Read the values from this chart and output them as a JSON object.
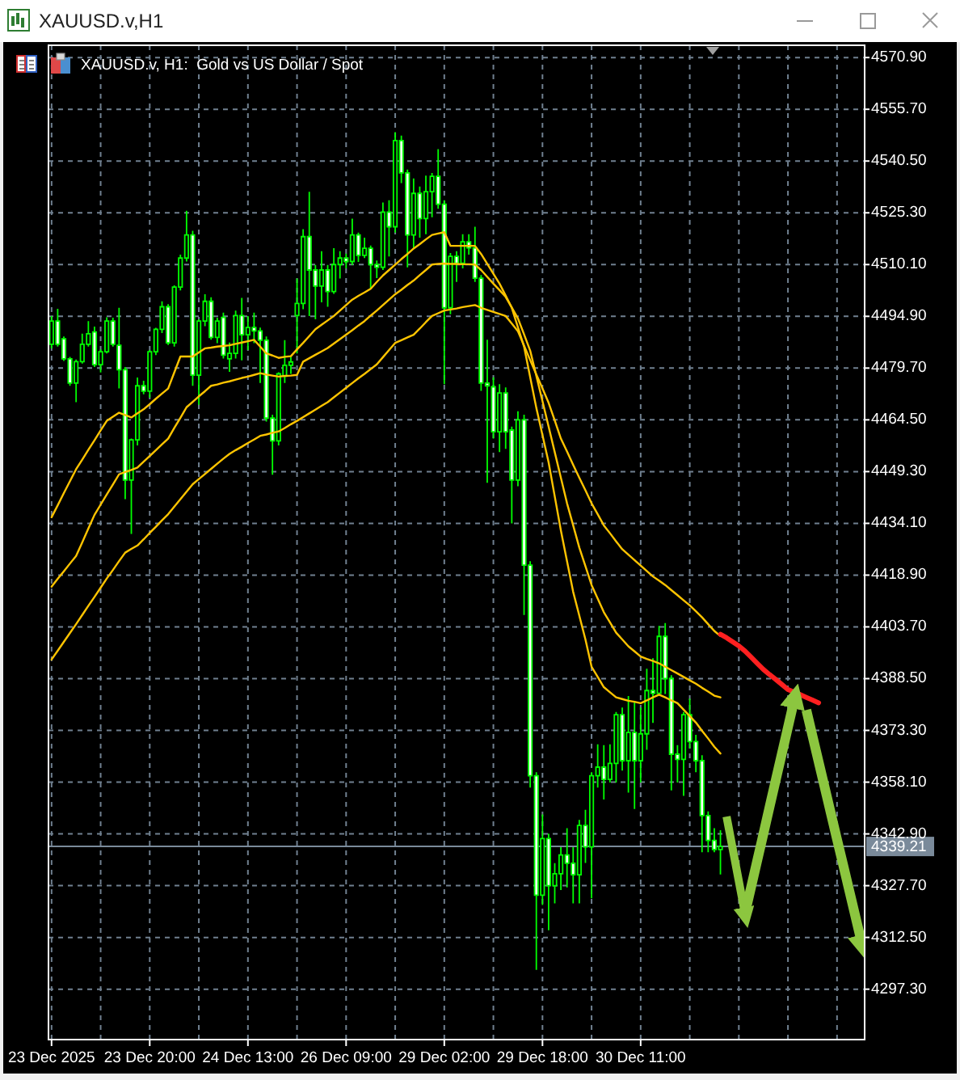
{
  "chart_data": {
    "type": "candlestick",
    "title": "XAUUSD.v,H1",
    "subtitle": "XAUUSD.v, H1:  Gold vs US Dollar / Spot",
    "color": "#00ff00",
    "categories": [
      "23 Dec 2025",
      null,
      null,
      null,
      null,
      null,
      null,
      null,
      null,
      null,
      null,
      null,
      null,
      null,
      null,
      null,
      "23 Dec 20:00",
      null,
      null,
      null,
      null,
      null,
      null,
      null,
      null,
      null,
      null,
      null,
      null,
      null,
      null,
      null,
      "24 Dec 13:00",
      null,
      null,
      null,
      null,
      null,
      null,
      null,
      null,
      null,
      null,
      null,
      null,
      null,
      null,
      null,
      "26 Dec 09:00",
      null,
      null,
      null,
      null,
      null,
      null,
      null,
      null,
      null,
      null,
      null,
      null,
      null,
      null,
      null,
      "29 Dec 02:00",
      null,
      null,
      null,
      null,
      null,
      null,
      null,
      null,
      null,
      null,
      null,
      null,
      null,
      null,
      null,
      "29 Dec 18:00",
      null,
      null,
      null,
      null,
      null,
      null,
      null,
      null,
      null,
      null,
      null,
      null,
      null,
      null,
      null,
      "30 Dec 11:00",
      null,
      null,
      null,
      null,
      null,
      null,
      null,
      null,
      null,
      null,
      null,
      null,
      null,
      null,
      null,
      null,
      null,
      null,
      null,
      null,
      null,
      null,
      null,
      null,
      null,
      null,
      null,
      null,
      null,
      null,
      null,
      null,
      null,
      null,
      null,
      null
    ],
    "ohlc": [
      [
        4486.7,
        4495.0,
        4485.5,
        4493.5
      ],
      [
        4493.5,
        4497.1,
        4486.0,
        4486.7
      ],
      [
        4488.3,
        4489.0,
        4481.8,
        4482.4
      ],
      [
        4482.4,
        4483.0,
        4474.5,
        4475.3
      ],
      [
        4475.3,
        4482.2,
        4469.7,
        4481.6
      ],
      [
        4481.6,
        4489.8,
        4481.0,
        4486.7
      ],
      [
        4486.7,
        4493.5,
        4486.0,
        4489.8
      ],
      [
        4490.3,
        4491.9,
        4480.0,
        4480.7
      ],
      [
        4480.7,
        4485.2,
        4478.4,
        4484.5
      ],
      [
        4484.5,
        4494.6,
        4484.0,
        4493.5
      ],
      [
        4493.5,
        4494.5,
        4486.0,
        4486.7
      ],
      [
        4486.4,
        4497.4,
        4473.7,
        4479.2
      ],
      [
        4479.2,
        4480.0,
        4441.2,
        4446.8
      ],
      [
        4446.8,
        4459.0,
        4431.0,
        4458.6
      ],
      [
        4458.6,
        4476.9,
        4457.0,
        4474.5
      ],
      [
        4474.5,
        4476.0,
        4472.0,
        4472.9
      ],
      [
        4472.9,
        4485.0,
        4471.0,
        4484.5
      ],
      [
        4484.5,
        4491.5,
        4483.5,
        4491.1
      ],
      [
        4491.1,
        4499.3,
        4490.0,
        4497.7
      ],
      [
        4497.7,
        4498.5,
        4486.5,
        4487.1
      ],
      [
        4487.1,
        4504.0,
        4486.0,
        4503.5
      ],
      [
        4503.5,
        4513.0,
        4502.5,
        4512.0
      ],
      [
        4512.0,
        4525.9,
        4511.0,
        4518.8
      ],
      [
        4518.8,
        4520.0,
        4474.5,
        4477.6
      ],
      [
        4477.6,
        4494.0,
        4468.9,
        4493.5
      ],
      [
        4493.5,
        4501.4,
        4492.0,
        4499.3
      ],
      [
        4499.3,
        4500.5,
        4488.0,
        4488.7
      ],
      [
        4488.7,
        4494.5,
        4487.0,
        4493.5
      ],
      [
        4494.6,
        4496.0,
        4482.5,
        4483.5
      ],
      [
        4482.4,
        4487.2,
        4478.6,
        4484.0
      ],
      [
        4484.0,
        4496.6,
        4482.5,
        4495.1
      ],
      [
        4495.1,
        4500.3,
        4482.0,
        4489.5
      ],
      [
        4489.5,
        4495.0,
        4485.0,
        4491.6
      ],
      [
        4491.6,
        4496.0,
        4487.0,
        4490.6
      ],
      [
        4490.6,
        4491.6,
        4475.3,
        4487.9
      ],
      [
        4487.9,
        4489.0,
        4464.0,
        4465.0
      ],
      [
        4465.0,
        4466.0,
        4448.4,
        4458.3
      ],
      [
        4458.3,
        4478.5,
        4457.0,
        4478.0
      ],
      [
        4477.3,
        4487.9,
        4475.3,
        4480.5
      ],
      [
        4480.5,
        4483.0,
        4478.0,
        4481.5
      ],
      [
        4495.1,
        4506.0,
        4484.0,
        4498.7
      ],
      [
        4498.7,
        4520.5,
        4497.0,
        4518.3
      ],
      [
        4518.3,
        4531.5,
        4495.0,
        4508.5
      ],
      [
        4508.5,
        4510.0,
        4494.0,
        4503.8
      ],
      [
        4503.8,
        4514.0,
        4499.0,
        4508.5
      ],
      [
        4508.5,
        4510.0,
        4497.7,
        4502.2
      ],
      [
        4502.2,
        4514.9,
        4501.5,
        4510.1
      ],
      [
        4510.1,
        4514.0,
        4506.0,
        4512.0
      ],
      [
        4512.0,
        4513.3,
        4509.0,
        4511.0
      ],
      [
        4511.0,
        4523.6,
        4510.0,
        4518.8
      ],
      [
        4518.8,
        4519.5,
        4510.9,
        4512.8
      ],
      [
        4512.8,
        4518.0,
        4512.0,
        4514.9
      ],
      [
        4514.9,
        4515.7,
        4503.0,
        4510.1
      ],
      [
        4510.1,
        4511.3,
        4506.1,
        4509.3
      ],
      [
        4509.3,
        4528.3,
        4508.5,
        4525.5
      ],
      [
        4525.5,
        4529.0,
        4512.5,
        4521.2
      ],
      [
        4521.2,
        4549.0,
        4519.5,
        4546.5
      ],
      [
        4546.5,
        4548.0,
        4534.0,
        4537.0
      ],
      [
        4537.0,
        4538.0,
        4509.3,
        4518.8
      ],
      [
        4518.8,
        4535.4,
        4515.0,
        4531.0
      ],
      [
        4531.0,
        4533.0,
        4518.0,
        4523.6
      ],
      [
        4523.6,
        4536.2,
        4519.0,
        4531.5
      ],
      [
        4531.5,
        4537.0,
        4524.0,
        4536.0
      ],
      [
        4536.0,
        4544.0,
        4526.5,
        4527.8
      ],
      [
        4527.8,
        4529.0,
        4475.0,
        4497.4
      ],
      [
        4497.4,
        4513.5,
        4495.5,
        4512.5
      ],
      [
        4512.5,
        4514.0,
        4505.0,
        4510.5
      ],
      [
        4510.5,
        4519.0,
        4509.0,
        4516.8
      ],
      [
        4516.8,
        4519.0,
        4513.0,
        4515.0
      ],
      [
        4515.0,
        4521.2,
        4505.0,
        4506.1
      ],
      [
        4506.1,
        4507.0,
        4473.0,
        4475.3
      ],
      [
        4475.3,
        4488.0,
        4446.0,
        4474.5
      ],
      [
        4474.2,
        4477.0,
        4459.0,
        4461.0
      ],
      [
        4461.0,
        4475.0,
        4455.0,
        4472.4
      ],
      [
        4472.4,
        4474.0,
        4456.0,
        4461.0
      ],
      [
        4461.5,
        4462.5,
        4434.1,
        4446.8
      ],
      [
        4446.8,
        4467.0,
        4445.0,
        4464.5
      ],
      [
        4464.5,
        4466.0,
        4407.2,
        4421.8
      ],
      [
        4421.8,
        4423.0,
        4356.5,
        4360.0
      ],
      [
        4360.0,
        4361.0,
        4303.0,
        4324.9
      ],
      [
        4324.9,
        4348.6,
        4322.0,
        4341.5
      ],
      [
        4341.5,
        4343.0,
        4314.6,
        4327.7
      ],
      [
        4327.7,
        4334.3,
        4322.5,
        4331.2
      ],
      [
        4331.2,
        4339.0,
        4326.4,
        4336.7
      ],
      [
        4336.7,
        4344.6,
        4327.2,
        4334.3
      ],
      [
        4334.3,
        4339.0,
        4322.5,
        4330.9
      ],
      [
        4330.9,
        4347.0,
        4322.5,
        4345.4
      ],
      [
        4345.4,
        4350.0,
        4334.4,
        4339.1
      ],
      [
        4339.1,
        4361.0,
        4324.0,
        4360.0
      ],
      [
        4360.0,
        4369.2,
        4356.5,
        4362.5
      ],
      [
        4362.5,
        4369.0,
        4353.0,
        4358.9
      ],
      [
        4358.9,
        4369.2,
        4358.0,
        4363.6
      ],
      [
        4363.6,
        4378.7,
        4358.0,
        4377.9
      ],
      [
        4377.9,
        4380.0,
        4361.5,
        4364.4
      ],
      [
        4364.4,
        4383.4,
        4355.0,
        4372.7
      ],
      [
        4372.7,
        4381.9,
        4350.2,
        4364.4
      ],
      [
        4364.4,
        4380.0,
        4358.0,
        4372.3
      ],
      [
        4372.3,
        4391.4,
        4367.6,
        4385.0
      ],
      [
        4385.0,
        4394.5,
        4375.5,
        4384.2
      ],
      [
        4384.2,
        4404.0,
        4383.5,
        4400.9
      ],
      [
        4400.9,
        4404.8,
        4384.0,
        4388.5
      ],
      [
        4388.5,
        4389.5,
        4355.7,
        4366.3
      ],
      [
        4366.3,
        4369.0,
        4358.0,
        4364.8
      ],
      [
        4364.8,
        4378.7,
        4354.1,
        4377.9
      ],
      [
        4377.9,
        4382.6,
        4368.0,
        4370.0
      ],
      [
        4370.0,
        4372.0,
        4361.0,
        4364.4
      ],
      [
        4364.4,
        4366.0,
        4337.5,
        4348.3
      ],
      [
        4348.3,
        4349.5,
        4337.5,
        4341.0
      ],
      [
        4341.0,
        4344.6,
        4337.5,
        4338.3
      ],
      [
        4338.3,
        4344.0,
        4331.0,
        4339.21
      ],
      null,
      null,
      null,
      null,
      null,
      null,
      null,
      null,
      null,
      null,
      null,
      null,
      null,
      null,
      null,
      null,
      null,
      null,
      null,
      null,
      null,
      null,
      null
    ],
    "series": [
      {
        "type": "line",
        "color": "#ffc400",
        "values": [
          4435.9,
          4439.4,
          4443.0,
          4446.5,
          4450.0,
          4452.8,
          4455.7,
          4458.5,
          4461.4,
          4464.2,
          4465.4,
          4466.6,
          4465.9,
          4465.2,
          4466.4,
          4467.6,
          4469.1,
          4470.7,
          4472.2,
          4473.7,
          4478.4,
          4483.1,
          4483.1,
          4483.1,
          4484.3,
          4485.5,
          4485.7,
          4486.0,
          4486.2,
          4486.4,
          4486.8,
          4487.2,
          4487.6,
          4488.0,
          4486.0,
          4484.0,
          4483.4,
          4482.7,
          4483.0,
          4483.2,
          4485.2,
          4487.1,
          4489.1,
          4491.1,
          4492.4,
          4493.7,
          4495.0,
          4496.6,
          4498.2,
          4499.8,
          4500.9,
          4501.9,
          4503.0,
          4505.0,
          4506.9,
          4508.5,
          4510.1,
          4511.7,
          4513.2,
          4514.8,
          4516.1,
          4517.5,
          4518.8,
          4519.2,
          4519.6,
          4515.6,
          4515.6,
          4515.6,
          4515.6,
          4515.6,
          4513.2,
          4510.3,
          4507.4,
          4504.5,
          4501.0,
          4497.4,
          4491.7,
          4486.0,
          4477.0,
          4468.0,
          4460.0,
          4452.0,
          4442.0,
          4432.0,
          4423.0,
          4414.0,
          4407.0,
          4400.0,
          4392.0,
          4389.0,
          4386.0,
          4384.5,
          4383.0,
          4382.5,
          4382.0,
          4381.7,
          4381.3,
          4382.1,
          4383.0,
          4383.8,
          4383.0,
          4382.1,
          4381.3,
          4379.4,
          4377.5,
          4375.6,
          4373.2,
          4370.9,
          4368.5,
          4366.5,
          null,
          null,
          null,
          null,
          null,
          null,
          null,
          null,
          null,
          null,
          null,
          null,
          null,
          null,
          null,
          null,
          null,
          null,
          null,
          null,
          null,
          null,
          null
        ]
      },
      {
        "type": "line",
        "color": "#ffc400",
        "values": [
          4415.5,
          4417.8,
          4420.0,
          4422.3,
          4424.5,
          4428.5,
          4432.6,
          4436.6,
          4439.6,
          4442.6,
          4445.5,
          4448.5,
          4449.2,
          4449.8,
          4450.5,
          4452.2,
          4453.9,
          4455.6,
          4457.3,
          4459.0,
          4462.1,
          4465.1,
          4468.2,
          4469.8,
          4471.4,
          4472.9,
          4474.5,
          4474.9,
          4475.4,
          4475.8,
          4476.3,
          4476.8,
          4477.2,
          4477.7,
          4478.2,
          4477.8,
          4477.5,
          4477.2,
          4477.4,
          4477.5,
          4477.7,
          4481.6,
          4482.6,
          4483.6,
          4484.6,
          4485.6,
          4486.9,
          4488.2,
          4489.5,
          4490.8,
          4492.2,
          4493.5,
          4495.1,
          4496.6,
          4498.2,
          4499.8,
          4501.4,
          4502.7,
          4504.1,
          4505.4,
          4507.0,
          4508.5,
          4510.1,
          4510.3,
          4510.4,
          4510.3,
          4510.3,
          4510.2,
          4510.2,
          4510.1,
          4508.5,
          4506.5,
          4504.5,
          4502.6,
          4500.6,
          4497.5,
          4494.3,
          4489.6,
          4484.8,
          4477.4,
          4470.0,
          4462.5,
          4455.0,
          4447.5,
          4440.0,
          4433.5,
          4427.0,
          4421.5,
          4416.0,
          4412.0,
          4408.0,
          4405.0,
          4402.0,
          4400.0,
          4398.0,
          4396.5,
          4395.0,
          4394.3,
          4393.7,
          4393.0,
          4392.0,
          4391.0,
          4390.0,
          4389.0,
          4388.0,
          4387.0,
          4385.8,
          4384.7,
          4383.5,
          4383.0,
          null,
          null,
          null,
          null,
          null,
          null,
          null,
          null,
          null,
          null,
          null,
          null,
          null,
          null,
          null,
          null,
          null,
          null,
          null,
          null,
          null,
          null,
          null
        ]
      },
      {
        "type": "line",
        "color": "#ffc400",
        "values": [
          4394.1,
          4396.7,
          4399.3,
          4401.9,
          4404.5,
          4407.2,
          4409.9,
          4412.5,
          4415.2,
          4417.9,
          4420.4,
          4423.0,
          4425.5,
          4426.6,
          4427.6,
          4429.4,
          4431.3,
          4433.1,
          4435.0,
          4436.8,
          4439.0,
          4441.2,
          4443.4,
          4445.6,
          4447.1,
          4448.6,
          4450.1,
          4451.6,
          4453.1,
          4454.5,
          4455.6,
          4456.6,
          4457.7,
          4458.7,
          4459.8,
          4460.2,
          4460.7,
          4461.1,
          4462.1,
          4463.2,
          4464.2,
          4465.3,
          4466.4,
          4467.5,
          4468.6,
          4469.7,
          4471.1,
          4472.5,
          4473.9,
          4475.3,
          4476.7,
          4478.0,
          4479.4,
          4480.8,
          4482.9,
          4485.0,
          4487.1,
          4487.9,
          4488.7,
          4489.5,
          4491.3,
          4493.2,
          4495.0,
          4495.8,
          4496.6,
          4496.9,
          4497.2,
          4497.6,
          4497.9,
          4498.2,
          4497.4,
          4496.8,
          4496.2,
          4495.6,
          4495.0,
          4492.8,
          4490.5,
          4486.3,
          4482.0,
          4477.8,
          4473.7,
          4469.5,
          4464.3,
          4459.0,
          4455.2,
          4451.3,
          4447.5,
          4443.8,
          4440.0,
          4436.8,
          4433.5,
          4431.2,
          4428.8,
          4426.5,
          4424.9,
          4423.3,
          4421.7,
          4420.1,
          4418.5,
          4417.3,
          4416.0,
          4414.5,
          4413.0,
          4411.5,
          4410.0,
          4408.3,
          4406.5,
          4404.5,
          4402.5,
          4401.0,
          null,
          null,
          null,
          null,
          null,
          null,
          null,
          null,
          null,
          null,
          null,
          null,
          null,
          null,
          null,
          null,
          null,
          null,
          null,
          null,
          null,
          null,
          null
        ]
      },
      {
        "type": "line",
        "color": "#ff2020",
        "values": [
          null,
          null,
          null,
          null,
          null,
          null,
          null,
          null,
          null,
          null,
          null,
          null,
          null,
          null,
          null,
          null,
          null,
          null,
          null,
          null,
          null,
          null,
          null,
          null,
          null,
          null,
          null,
          null,
          null,
          null,
          null,
          null,
          null,
          null,
          null,
          null,
          null,
          null,
          null,
          null,
          null,
          null,
          null,
          null,
          null,
          null,
          null,
          null,
          null,
          null,
          null,
          null,
          null,
          null,
          null,
          null,
          null,
          null,
          null,
          null,
          null,
          null,
          null,
          null,
          null,
          null,
          null,
          null,
          null,
          null,
          null,
          null,
          null,
          null,
          null,
          null,
          null,
          null,
          null,
          null,
          null,
          null,
          null,
          null,
          null,
          null,
          null,
          null,
          null,
          null,
          null,
          null,
          null,
          null,
          null,
          null,
          null,
          null,
          null,
          null,
          null,
          null,
          null,
          null,
          null,
          null,
          null,
          null,
          null,
          4401.5,
          4400.5,
          4399.3,
          4398.1,
          4396.6,
          4394.8,
          4393.0,
          4391.2,
          4389.7,
          4388.3,
          4386.8,
          4385.3,
          4384.6,
          4383.8,
          4383.0,
          4382.2,
          4381.4,
          null,
          null,
          null,
          null,
          null,
          null,
          null
        ]
      },
      {
        "type": "line",
        "color": "#8cc63f",
        "values": [
          null,
          null,
          null,
          null,
          null,
          null,
          null,
          null,
          null,
          null,
          null,
          null,
          null,
          null,
          null,
          null,
          null,
          null,
          null,
          null,
          null,
          null,
          null,
          null,
          null,
          null,
          null,
          null,
          null,
          null,
          null,
          null,
          null,
          null,
          null,
          null,
          null,
          null,
          null,
          null,
          null,
          null,
          null,
          null,
          null,
          null,
          null,
          null,
          null,
          null,
          null,
          null,
          null,
          null,
          null,
          null,
          null,
          null,
          null,
          null,
          null,
          null,
          null,
          null,
          null,
          null,
          null,
          null,
          null,
          null,
          null,
          null,
          null,
          null,
          null,
          null,
          null,
          null,
          null,
          null,
          null,
          null,
          null,
          null,
          null,
          null,
          null,
          null,
          null,
          null,
          null,
          null,
          null,
          null,
          null,
          null,
          null,
          null,
          null,
          null,
          null,
          null,
          null,
          null,
          null,
          null,
          null,
          null,
          null,
          null,
          4348.0,
          4338.5,
          4329.0,
          4319.5,
          null,
          null,
          null,
          null,
          null,
          null,
          null,
          null,
          null,
          null,
          null,
          null,
          null,
          null,
          null,
          null,
          null,
          null,
          null
        ]
      },
      {
        "type": "line",
        "color": "#8cc63f",
        "values": [
          null,
          null,
          null,
          null,
          null,
          null,
          null,
          null,
          null,
          null,
          null,
          null,
          null,
          null,
          null,
          null,
          null,
          null,
          null,
          null,
          null,
          null,
          null,
          null,
          null,
          null,
          null,
          null,
          null,
          null,
          null,
          null,
          null,
          null,
          null,
          null,
          null,
          null,
          null,
          null,
          null,
          null,
          null,
          null,
          null,
          null,
          null,
          null,
          null,
          null,
          null,
          null,
          null,
          null,
          null,
          null,
          null,
          null,
          null,
          null,
          null,
          null,
          null,
          null,
          null,
          null,
          null,
          null,
          null,
          null,
          null,
          null,
          null,
          null,
          null,
          null,
          null,
          null,
          null,
          null,
          null,
          null,
          null,
          null,
          null,
          null,
          null,
          null,
          null,
          null,
          null,
          null,
          null,
          null,
          null,
          null,
          null,
          null,
          null,
          null,
          null,
          null,
          null,
          null,
          null,
          null,
          null,
          null,
          null,
          null,
          null,
          null,
          null,
          4319.5,
          4327.3,
          4335.1,
          4342.9,
          4350.8,
          4358.6,
          4366.4,
          4374.2,
          4382.0,
          null,
          null,
          null,
          null,
          null,
          null,
          null,
          null,
          null,
          null,
          null
        ]
      },
      {
        "type": "line",
        "color": "#8cc63f",
        "values": [
          null,
          null,
          null,
          null,
          null,
          null,
          null,
          null,
          null,
          null,
          null,
          null,
          null,
          null,
          null,
          null,
          null,
          null,
          null,
          null,
          null,
          null,
          null,
          null,
          null,
          null,
          null,
          null,
          null,
          null,
          null,
          null,
          null,
          null,
          null,
          null,
          null,
          null,
          null,
          null,
          null,
          null,
          null,
          null,
          null,
          null,
          null,
          null,
          null,
          null,
          null,
          null,
          null,
          null,
          null,
          null,
          null,
          null,
          null,
          null,
          null,
          null,
          null,
          null,
          null,
          null,
          null,
          null,
          null,
          null,
          null,
          null,
          null,
          null,
          null,
          null,
          null,
          null,
          null,
          null,
          null,
          null,
          null,
          null,
          null,
          null,
          null,
          null,
          null,
          null,
          null,
          null,
          null,
          null,
          null,
          null,
          null,
          null,
          null,
          null,
          null,
          null,
          null,
          null,
          null,
          null,
          null,
          null,
          null,
          null,
          null,
          null,
          null,
          null,
          null,
          null,
          null,
          null,
          null,
          null,
          null,
          null,
          null,
          4379.3,
          4371.7,
          4364.1,
          4356.5,
          4348.9,
          4341.3,
          4333.8,
          4326.2,
          4318.6,
          4311.0
        ]
      }
    ],
    "ylim": [
      4282.5,
      4574.5
    ],
    "yticks": [
      {
        "value": 4297.3,
        "label": "4297.30"
      },
      {
        "value": 4312.5,
        "label": "4312.50"
      },
      {
        "value": 4327.7,
        "label": "4327.70"
      },
      {
        "value": 4342.9,
        "label": "4342.90"
      },
      {
        "value": 4358.1,
        "label": "4358.10"
      },
      {
        "value": 4373.3,
        "label": "4373.30"
      },
      {
        "value": 4388.5,
        "label": "4388.50"
      },
      {
        "value": 4403.7,
        "label": "4403.70"
      },
      {
        "value": 4418.9,
        "label": "4418.90"
      },
      {
        "value": 4434.1,
        "label": "4434.10"
      },
      {
        "value": 4449.3,
        "label": "4449.30"
      },
      {
        "value": 4464.5,
        "label": "4464.50"
      },
      {
        "value": 4479.7,
        "label": "4479.70"
      },
      {
        "value": 4494.9,
        "label": "4494.90"
      },
      {
        "value": 4510.1,
        "label": "4510.10"
      },
      {
        "value": 4525.3,
        "label": "4525.30"
      },
      {
        "value": 4540.5,
        "label": "4540.50"
      },
      {
        "value": 4555.7,
        "label": "4555.70"
      },
      {
        "value": 4570.9,
        "label": "4570.90"
      }
    ],
    "ref_lines": [
      {
        "axis": "y",
        "value": 4339.21,
        "label": "4339.21",
        "color": "#7a8a9a"
      }
    ],
    "grid": true
  }
}
